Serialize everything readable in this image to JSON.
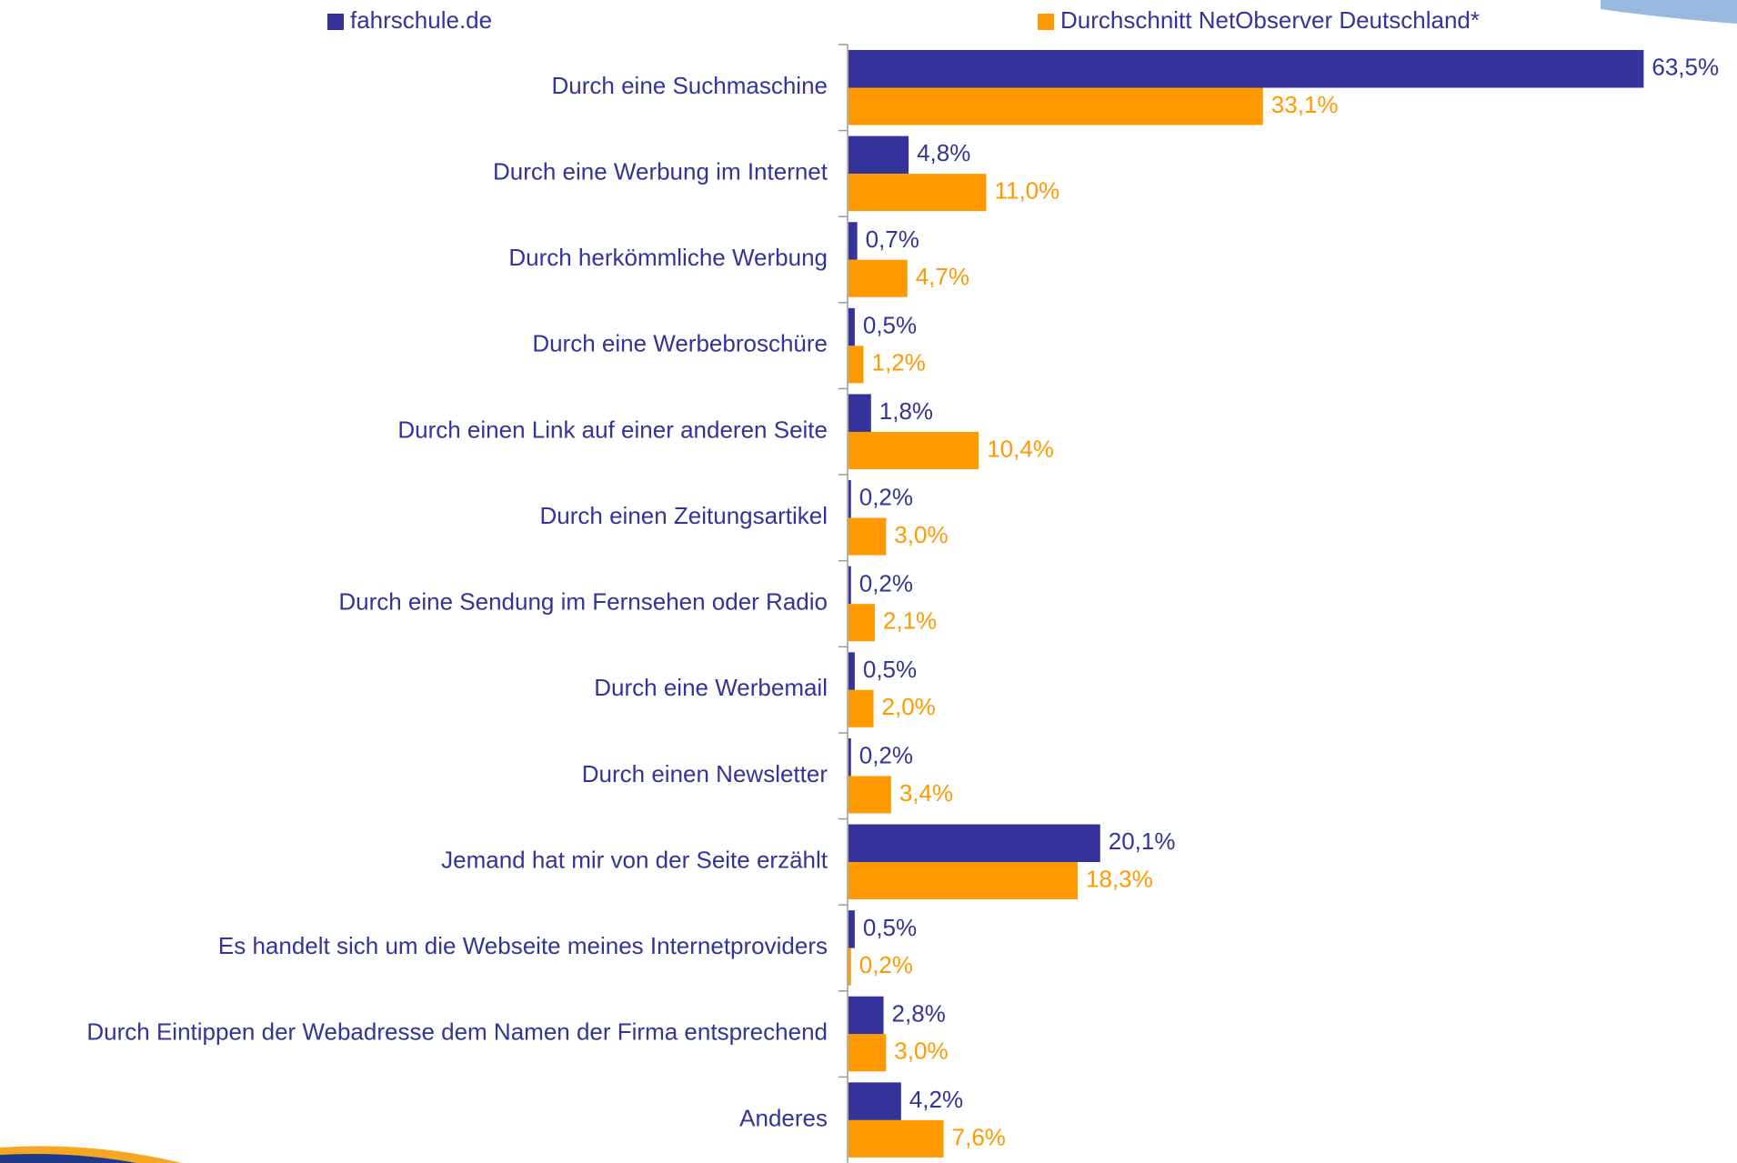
{
  "chart_data": {
    "type": "hbar",
    "categories": [
      "Durch eine Suchmaschine",
      "Durch eine Werbung im Internet",
      "Durch herkömmliche Werbung",
      "Durch eine Werbebroschüre",
      "Durch einen Link auf einer anderen Seite",
      "Durch einen Zeitungsartikel",
      "Durch eine Sendung im Fernsehen oder Radio",
      "Durch eine Werbemail",
      "Durch einen Newsletter",
      "Jemand hat mir von der Seite erzählt",
      "Es handelt sich um die Webseite meines Internetproviders",
      "Durch Eintippen der Webadresse dem Namen der Firma entsprechend",
      "Anderes"
    ],
    "series": [
      {
        "name": "fahrschule.de",
        "color": "#333399",
        "values": [
          63.5,
          4.8,
          0.7,
          0.5,
          1.8,
          0.2,
          0.2,
          0.5,
          0.2,
          20.1,
          0.5,
          2.8,
          4.2
        ],
        "value_labels": [
          "63,5%",
          "4,8%",
          "0,7%",
          "0,5%",
          "1,8%",
          "0,2%",
          "0,2%",
          "0,5%",
          "0,2%",
          "20,1%",
          "0,5%",
          "2,8%",
          "4,2%"
        ]
      },
      {
        "name": "Durchschnitt NetObserver Deutschland*",
        "color": "#ff9900",
        "values": [
          33.1,
          11.0,
          4.7,
          1.2,
          10.4,
          3.0,
          2.1,
          2.0,
          3.4,
          18.3,
          0.2,
          3.0,
          7.6
        ],
        "value_labels": [
          "33,1%",
          "11,0%",
          "4,7%",
          "1,2%",
          "10,4%",
          "3,0%",
          "2,1%",
          "2,0%",
          "3,4%",
          "18,3%",
          "0,2%",
          "3,0%",
          "7,6%"
        ]
      }
    ]
  }
}
